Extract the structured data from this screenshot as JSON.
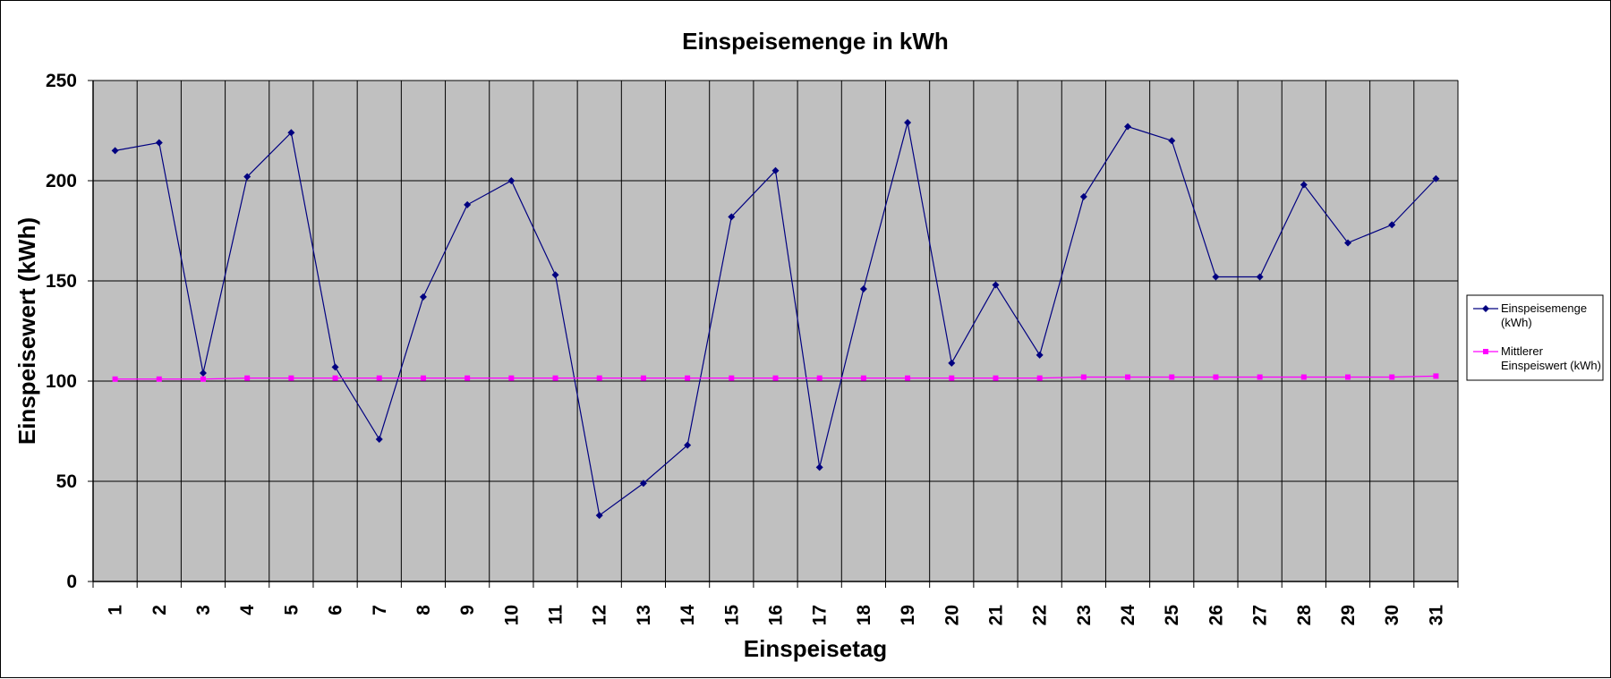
{
  "chart_data": {
    "type": "line",
    "title": "Einspeisemenge in kWh",
    "xlabel": "Einspeisetag",
    "ylabel": "Einspeisewert  (kWh)",
    "x": [
      1,
      2,
      3,
      4,
      5,
      6,
      7,
      8,
      9,
      10,
      11,
      12,
      13,
      14,
      15,
      16,
      17,
      18,
      19,
      20,
      21,
      22,
      23,
      24,
      25,
      26,
      27,
      28,
      29,
      30,
      31
    ],
    "ylim": [
      0,
      250
    ],
    "yticks": [
      0,
      50,
      100,
      150,
      200,
      250
    ],
    "grid": true,
    "legend_position": "right",
    "plot_background": "#c0c0c0",
    "series": [
      {
        "name": "Einspeisemenge (kWh)",
        "legend_lines": [
          "Einspeisemenge",
          "(kWh)"
        ],
        "color": "#000080",
        "marker": "diamond",
        "values": [
          215,
          219,
          104,
          202,
          224,
          107,
          71,
          142,
          188,
          200,
          153,
          33,
          49,
          68,
          182,
          205,
          57,
          146,
          229,
          109,
          148,
          113,
          192,
          227,
          220,
          152,
          152,
          198,
          169,
          178,
          201
        ]
      },
      {
        "name": "Mittlerer Einspeiswert (kWh)",
        "legend_lines": [
          "Mittlerer",
          "Einspeiswert (kWh)"
        ],
        "color": "#ff00ff",
        "marker": "square",
        "values": [
          101,
          101,
          101,
          101.5,
          101.5,
          101.5,
          101.5,
          101.5,
          101.5,
          101.5,
          101.5,
          101.5,
          101.5,
          101.5,
          101.5,
          101.5,
          101.5,
          101.5,
          101.5,
          101.5,
          101.5,
          101.5,
          102,
          102,
          102,
          102,
          102,
          102,
          102,
          102,
          102.5
        ]
      }
    ]
  }
}
